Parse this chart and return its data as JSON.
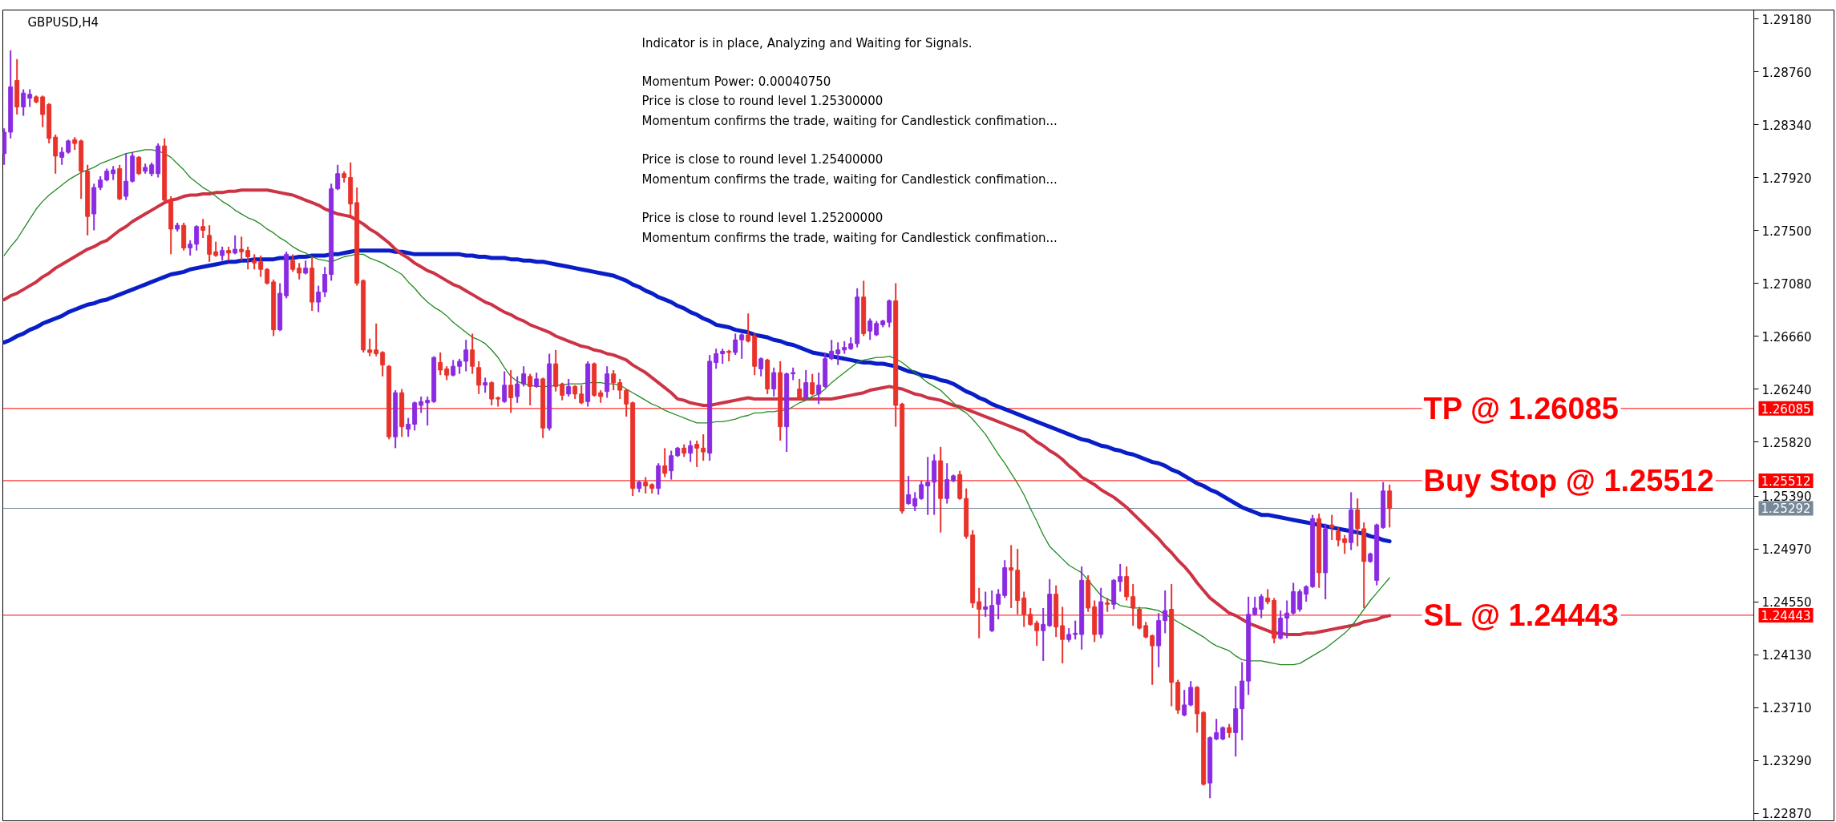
{
  "chart_data": {
    "type": "candlestick",
    "title": "GBPUSD,H4",
    "annotations": [
      "Indicator is in place, Analyzing and Waiting for Signals.",
      "Momentum Power: 0.00040750\nPrice is close to round level 1.25300000\nMomentum confirms the trade, waiting for Candlestick confimation...",
      "Price is close to round level 1.25400000\nMomentum confirms the trade, waiting for Candlestick confimation...",
      "Price is close to round level 1.25200000\nMomentum confirms the trade, waiting for Candlestick confimation..."
    ],
    "categories": [
      null,
      null,
      null,
      null,
      null,
      null,
      null,
      null,
      null,
      null,
      null,
      null,
      null,
      null,
      null,
      null,
      null,
      null,
      null,
      null,
      null,
      null,
      null,
      null,
      null,
      null,
      null,
      null,
      null,
      null,
      null,
      null,
      null,
      null,
      null,
      null,
      null,
      null,
      null,
      null,
      null,
      null,
      null,
      null,
      null,
      null,
      null,
      null,
      null,
      null,
      null,
      null,
      null,
      null,
      null,
      null,
      null,
      null,
      null,
      null,
      null,
      null,
      null,
      null,
      null,
      null,
      null,
      null,
      null,
      null,
      null,
      null,
      null,
      null,
      null,
      null,
      null,
      null,
      null,
      null,
      null,
      null,
      null,
      null,
      null,
      null,
      null,
      null,
      null,
      null,
      null,
      null,
      null,
      null,
      null,
      null,
      null,
      null,
      null,
      null,
      null,
      null,
      null,
      null,
      null,
      null,
      null,
      null,
      null,
      null,
      null,
      null,
      null,
      null,
      null,
      null,
      null,
      null,
      null,
      null,
      null,
      null,
      null,
      null,
      null,
      null,
      null,
      null,
      null,
      null,
      null,
      null,
      null,
      null,
      null,
      null,
      null,
      null,
      null,
      null,
      null,
      null,
      null,
      null,
      null,
      null,
      null,
      null,
      null,
      null,
      null,
      null,
      null,
      null,
      null,
      null,
      null,
      null,
      null,
      null,
      null,
      null,
      null,
      null,
      null,
      null,
      null,
      null,
      null,
      null,
      null,
      null,
      null,
      null,
      null,
      null,
      null,
      null,
      null,
      null,
      null,
      null,
      null,
      null,
      null,
      null,
      null,
      null,
      null,
      null,
      null,
      null,
      null,
      null,
      null,
      null,
      null,
      null,
      null,
      null,
      null,
      null,
      null,
      null,
      null,
      null,
      null,
      null,
      null,
      null,
      null,
      null,
      null,
      null,
      null,
      null,
      null
    ],
    "ohlc": [
      [
        1.2811,
        1.2831,
        1.2802,
        1.2828
      ],
      [
        1.2828,
        1.2893,
        1.2823,
        1.2864
      ],
      [
        1.2869,
        1.2886,
        1.2842,
        1.2848
      ],
      [
        1.2848,
        1.2862,
        1.2841,
        1.2859
      ],
      [
        1.2855,
        1.2862,
        1.2848,
        1.2858
      ],
      [
        1.2856,
        1.2857,
        1.2851,
        1.2852
      ],
      [
        1.2856,
        1.2857,
        1.2832,
        1.2842
      ],
      [
        1.285,
        1.2851,
        1.2819,
        1.2823
      ],
      [
        1.2824,
        1.2826,
        1.2795,
        1.2809
      ],
      [
        1.2808,
        1.2816,
        1.2802,
        1.2812
      ],
      [
        1.2812,
        1.2822,
        1.2811,
        1.2821
      ],
      [
        1.2822,
        1.2824,
        1.2814,
        1.2819
      ],
      [
        1.2821,
        1.2822,
        1.2775,
        1.2797
      ],
      [
        1.2797,
        1.2802,
        1.2746,
        1.2761
      ],
      [
        1.2763,
        1.2787,
        1.275,
        1.2784
      ],
      [
        1.2784,
        1.2793,
        1.2782,
        1.279
      ],
      [
        1.279,
        1.2799,
        1.2789,
        1.2797
      ],
      [
        1.2795,
        1.2801,
        1.279,
        1.2798
      ],
      [
        1.2799,
        1.2802,
        1.2774,
        1.2775
      ],
      [
        1.2777,
        1.2811,
        1.2774,
        1.2789
      ],
      [
        1.2789,
        1.2812,
        1.2788,
        1.2809
      ],
      [
        1.2808,
        1.2809,
        1.2794,
        1.2795
      ],
      [
        1.2797,
        1.2803,
        1.2795,
        1.28
      ],
      [
        1.2795,
        1.2804,
        1.2793,
        1.2802
      ],
      [
        1.2795,
        1.2819,
        1.2792,
        1.2817
      ],
      [
        1.2817,
        1.2823,
        1.2773,
        1.2774
      ],
      [
        1.2774,
        1.2777,
        1.2731,
        1.2751
      ],
      [
        1.2751,
        1.2756,
        1.2749,
        1.2754
      ],
      [
        1.2754,
        1.2756,
        1.2734,
        1.2736
      ],
      [
        1.2736,
        1.2742,
        1.273,
        1.2739
      ],
      [
        1.2739,
        1.2754,
        1.2734,
        1.2753
      ],
      [
        1.2753,
        1.2759,
        1.2744,
        1.275
      ],
      [
        1.2746,
        1.2754,
        1.2725,
        1.2731
      ],
      [
        1.2733,
        1.2741,
        1.2729,
        1.273
      ],
      [
        1.273,
        1.2737,
        1.2726,
        1.2734
      ],
      [
        1.2734,
        1.2737,
        1.2726,
        1.2732
      ],
      [
        1.2732,
        1.2746,
        1.2731,
        1.2735
      ],
      [
        1.2735,
        1.2745,
        1.2726,
        1.2733
      ],
      [
        1.2734,
        1.2737,
        1.2719,
        1.2729
      ],
      [
        1.2726,
        1.2731,
        1.2719,
        1.2724
      ],
      [
        1.2725,
        1.273,
        1.2713,
        1.2719
      ],
      [
        1.2719,
        1.272,
        1.2707,
        1.2708
      ],
      [
        1.2709,
        1.2711,
        1.2666,
        1.2671
      ],
      [
        1.2671,
        1.2708,
        1.267,
        1.27
      ],
      [
        1.2698,
        1.2733,
        1.2696,
        1.2731
      ],
      [
        1.2726,
        1.2731,
        1.2717,
        1.2719
      ],
      [
        1.272,
        1.2724,
        1.2711,
        1.2716
      ],
      [
        1.2716,
        1.2726,
        1.2715,
        1.272
      ],
      [
        1.272,
        1.2729,
        1.2686,
        1.2693
      ],
      [
        1.2693,
        1.2706,
        1.2685,
        1.2701
      ],
      [
        1.2701,
        1.2721,
        1.2697,
        1.2715
      ],
      [
        1.2715,
        1.2787,
        1.271,
        1.2783
      ],
      [
        1.2783,
        1.2802,
        1.2782,
        1.2795
      ],
      [
        1.2795,
        1.2797,
        1.2788,
        1.2792
      ],
      [
        1.2792,
        1.2804,
        1.2761,
        1.2771
      ],
      [
        1.2772,
        1.2784,
        1.2706,
        1.2708
      ],
      [
        1.271,
        1.2711,
        1.2653,
        1.2655
      ],
      [
        1.2655,
        1.2664,
        1.265,
        1.2653
      ],
      [
        1.2655,
        1.2676,
        1.265,
        1.2652
      ],
      [
        1.2653,
        1.2654,
        1.2634,
        1.2643
      ],
      [
        1.2642,
        1.2643,
        1.2584,
        1.2586
      ],
      [
        1.2586,
        1.2623,
        1.2577,
        1.2621
      ],
      [
        1.2621,
        1.2624,
        1.2586,
        1.2594
      ],
      [
        1.2592,
        1.2601,
        1.2586,
        1.2596
      ],
      [
        1.2596,
        1.2614,
        1.2591,
        1.2613
      ],
      [
        1.2611,
        1.2618,
        1.2605,
        1.2614
      ],
      [
        1.2613,
        1.2618,
        1.2595,
        1.2615
      ],
      [
        1.2614,
        1.265,
        1.2613,
        1.2649
      ],
      [
        1.2645,
        1.2653,
        1.2635,
        1.2639
      ],
      [
        1.264,
        1.2642,
        1.2631,
        1.2635
      ],
      [
        1.2635,
        1.2647,
        1.2634,
        1.2642
      ],
      [
        1.2642,
        1.2648,
        1.2636,
        1.2646
      ],
      [
        1.2646,
        1.2663,
        1.2638,
        1.2655
      ],
      [
        1.2655,
        1.2668,
        1.2636,
        1.2642
      ],
      [
        1.2641,
        1.2646,
        1.262,
        1.2627
      ],
      [
        1.2627,
        1.2633,
        1.2621,
        1.2629
      ],
      [
        1.2629,
        1.263,
        1.2611,
        1.2616
      ],
      [
        1.2617,
        1.2618,
        1.261,
        1.2616
      ],
      [
        1.2614,
        1.2638,
        1.2613,
        1.2627
      ],
      [
        1.2627,
        1.2639,
        1.2605,
        1.2617
      ],
      [
        1.2618,
        1.2634,
        1.2613,
        1.2628
      ],
      [
        1.2628,
        1.2642,
        1.2626,
        1.2636
      ],
      [
        1.2634,
        1.2636,
        1.2611,
        1.2626
      ],
      [
        1.2626,
        1.2637,
        1.2625,
        1.2632
      ],
      [
        1.2632,
        1.2633,
        1.2585,
        1.2593
      ],
      [
        1.2593,
        1.2652,
        1.2591,
        1.2644
      ],
      [
        1.2644,
        1.2655,
        1.2622,
        1.2626
      ],
      [
        1.2628,
        1.2629,
        1.2615,
        1.2619
      ],
      [
        1.262,
        1.2632,
        1.2618,
        1.2626
      ],
      [
        1.2626,
        1.2627,
        1.2616,
        1.262
      ],
      [
        1.262,
        1.2627,
        1.2612,
        1.2613
      ],
      [
        1.2614,
        1.2646,
        1.261,
        1.2644
      ],
      [
        1.2644,
        1.2645,
        1.2618,
        1.2619
      ],
      [
        1.2621,
        1.2623,
        1.2613,
        1.2618
      ],
      [
        1.2622,
        1.2642,
        1.2617,
        1.2636
      ],
      [
        1.2636,
        1.2639,
        1.2623,
        1.2629
      ],
      [
        1.2629,
        1.2632,
        1.2616,
        1.2623
      ],
      [
        1.2623,
        1.2624,
        1.2602,
        1.2612
      ],
      [
        1.2613,
        1.2614,
        1.2539,
        1.2545
      ],
      [
        1.2545,
        1.2551,
        1.2542,
        1.255
      ],
      [
        1.255,
        1.2554,
        1.2541,
        1.2547
      ],
      [
        1.2548,
        1.2549,
        1.2541,
        1.2545
      ],
      [
        1.2545,
        1.2565,
        1.254,
        1.2563
      ],
      [
        1.2563,
        1.2577,
        1.2554,
        1.2557
      ],
      [
        1.2559,
        1.2575,
        1.2552,
        1.2571
      ],
      [
        1.2571,
        1.2578,
        1.257,
        1.2577
      ],
      [
        1.2577,
        1.258,
        1.257,
        1.2573
      ],
      [
        1.2573,
        1.2583,
        1.2566,
        1.2579
      ],
      [
        1.258,
        1.2583,
        1.2562,
        1.2577
      ],
      [
        1.2577,
        1.2588,
        1.2567,
        1.2574
      ],
      [
        1.2573,
        1.2651,
        1.2567,
        1.2646
      ],
      [
        1.2645,
        1.2656,
        1.264,
        1.2652
      ],
      [
        1.2652,
        1.2656,
        1.2644,
        1.2654
      ],
      [
        1.2654,
        1.2655,
        1.2646,
        1.2653
      ],
      [
        1.2653,
        1.2668,
        1.2651,
        1.2663
      ],
      [
        1.2663,
        1.2668,
        1.2648,
        1.2667
      ],
      [
        1.2667,
        1.2684,
        1.2661,
        1.2662
      ],
      [
        1.2666,
        1.2668,
        1.2635,
        1.2642
      ],
      [
        1.264,
        1.2649,
        1.2634,
        1.2648
      ],
      [
        1.2647,
        1.2648,
        1.262,
        1.2624
      ],
      [
        1.2624,
        1.2641,
        1.2618,
        1.2637
      ],
      [
        1.2637,
        1.2646,
        1.2583,
        1.2594
      ],
      [
        1.2594,
        1.2637,
        1.2574,
        1.2636
      ],
      [
        1.2636,
        1.2641,
        1.2631,
        1.2637
      ],
      [
        1.2624,
        1.2632,
        1.2615,
        1.2616
      ],
      [
        1.2617,
        1.2639,
        1.2616,
        1.2629
      ],
      [
        1.2629,
        1.2636,
        1.2619,
        1.262
      ],
      [
        1.262,
        1.2637,
        1.2612,
        1.2627
      ],
      [
        1.2626,
        1.2653,
        1.2625,
        1.2648
      ],
      [
        1.2648,
        1.2663,
        1.2647,
        1.2654
      ],
      [
        1.2652,
        1.2661,
        1.2643,
        1.2655
      ],
      [
        1.2655,
        1.2662,
        1.2652,
        1.2657
      ],
      [
        1.2656,
        1.2665,
        1.2655,
        1.266
      ],
      [
        1.266,
        1.2704,
        1.2657,
        1.2697
      ],
      [
        1.2697,
        1.271,
        1.2666,
        1.2668
      ],
      [
        1.267,
        1.268,
        1.2663,
        1.2678
      ],
      [
        1.2667,
        1.2678,
        1.2666,
        1.2676
      ],
      [
        1.2675,
        1.2679,
        1.2673,
        1.2678
      ],
      [
        1.2677,
        1.2695,
        1.2673,
        1.2694
      ],
      [
        1.2694,
        1.2708,
        1.2594,
        1.2611
      ],
      [
        1.2612,
        1.2613,
        1.2525,
        1.2527
      ],
      [
        1.2533,
        1.2555,
        1.2532,
        1.254
      ],
      [
        1.2531,
        1.2542,
        1.2527,
        1.2537
      ],
      [
        1.2537,
        1.2551,
        1.2536,
        1.2548
      ],
      [
        1.2547,
        1.257,
        1.2524,
        1.255
      ],
      [
        1.255,
        1.2572,
        1.2524,
        1.2567
      ],
      [
        1.2567,
        1.2578,
        1.251,
        1.2537
      ],
      [
        1.2537,
        1.2565,
        1.2533,
        1.2552
      ],
      [
        1.2551,
        1.2556,
        1.255,
        1.2555
      ],
      [
        1.2556,
        1.2559,
        1.2536,
        1.2537
      ],
      [
        1.2537,
        1.2545,
        1.2505,
        1.2507
      ],
      [
        1.2508,
        1.2512,
        1.245,
        1.2454
      ],
      [
        1.2455,
        1.2466,
        1.2426,
        1.2449
      ],
      [
        1.2449,
        1.2463,
        1.2443,
        1.2451
      ],
      [
        1.2432,
        1.2464,
        1.2431,
        1.2452
      ],
      [
        1.2453,
        1.2465,
        1.2441,
        1.2461
      ],
      [
        1.246,
        1.2488,
        1.2458,
        1.2482
      ],
      [
        1.2482,
        1.25,
        1.245,
        1.248
      ],
      [
        1.248,
        1.2497,
        1.2445,
        1.2456
      ],
      [
        1.2458,
        1.2463,
        1.2435,
        1.2445
      ],
      [
        1.2445,
        1.245,
        1.2436,
        1.2437
      ],
      [
        1.2438,
        1.244,
        1.242,
        1.2432
      ],
      [
        1.2432,
        1.245,
        1.2408,
        1.2437
      ],
      [
        1.2436,
        1.2473,
        1.2435,
        1.2461
      ],
      [
        1.2461,
        1.2468,
        1.2427,
        1.2435
      ],
      [
        1.2436,
        1.2451,
        1.2406,
        1.2425
      ],
      [
        1.2425,
        1.2434,
        1.2423,
        1.2429
      ],
      [
        1.2429,
        1.244,
        1.2425,
        1.243
      ],
      [
        1.2429,
        1.2483,
        1.2417,
        1.2472
      ],
      [
        1.2472,
        1.2476,
        1.2447,
        1.245
      ],
      [
        1.2451,
        1.2456,
        1.2423,
        1.2429
      ],
      [
        1.2429,
        1.2466,
        1.2426,
        1.2455
      ],
      [
        1.2454,
        1.2458,
        1.2447,
        1.2453
      ],
      [
        1.2453,
        1.2473,
        1.2449,
        1.2472
      ],
      [
        1.2471,
        1.2485,
        1.2463,
        1.2475
      ],
      [
        1.2475,
        1.2483,
        1.2456,
        1.2459
      ],
      [
        1.2459,
        1.2469,
        1.2436,
        1.245
      ],
      [
        1.2449,
        1.2451,
        1.2433,
        1.2434
      ],
      [
        1.2436,
        1.2439,
        1.2426,
        1.2427
      ],
      [
        1.2428,
        1.2429,
        1.2389,
        1.242
      ],
      [
        1.242,
        1.2446,
        1.2403,
        1.244
      ],
      [
        1.244,
        1.2464,
        1.243,
        1.2448
      ],
      [
        1.2449,
        1.2469,
        1.2372,
        1.2391
      ],
      [
        1.2391,
        1.2393,
        1.2366,
        1.2369
      ],
      [
        1.2365,
        1.2385,
        1.2364,
        1.2373
      ],
      [
        1.2373,
        1.2392,
        1.2372,
        1.2387
      ],
      [
        1.2387,
        1.2388,
        1.2351,
        1.2366
      ],
      [
        1.2367,
        1.2368,
        1.2309,
        1.231
      ],
      [
        1.2311,
        1.2348,
        1.2299,
        1.2347
      ],
      [
        1.2346,
        1.2362,
        1.2345,
        1.2351
      ],
      [
        1.2346,
        1.2356,
        1.2345,
        1.2355
      ],
      [
        1.2355,
        1.2358,
        1.2347,
        1.2351
      ],
      [
        1.2351,
        1.2388,
        1.2332,
        1.237
      ],
      [
        1.237,
        1.2407,
        1.2345,
        1.2392
      ],
      [
        1.2392,
        1.2459,
        1.2381,
        1.2445
      ],
      [
        1.2445,
        1.2459,
        1.2444,
        1.245
      ],
      [
        1.2449,
        1.2461,
        1.2442,
        1.2459
      ],
      [
        1.2458,
        1.2465,
        1.2453,
        1.2455
      ],
      [
        1.2456,
        1.2458,
        1.2422,
        1.2426
      ],
      [
        1.2426,
        1.2448,
        1.2425,
        1.2442
      ],
      [
        1.2442,
        1.2456,
        1.2426,
        1.2446
      ],
      [
        1.2446,
        1.247,
        1.2445,
        1.2463
      ],
      [
        1.2449,
        1.2465,
        1.2447,
        1.2463
      ],
      [
        1.2461,
        1.2468,
        1.2455,
        1.2467
      ],
      [
        1.2467,
        1.2524,
        1.2466,
        1.2521
      ],
      [
        1.2521,
        1.2525,
        1.2466,
        1.2478
      ],
      [
        1.2478,
        1.2517,
        1.2457,
        1.2513
      ],
      [
        1.2516,
        1.2524,
        1.2504,
        1.2514
      ],
      [
        1.2511,
        1.2514,
        1.2499,
        1.2504
      ],
      [
        1.2505,
        1.2508,
        1.2493,
        1.2502
      ],
      [
        1.2502,
        1.2542,
        1.2496,
        1.2528
      ],
      [
        1.2528,
        1.2537,
        1.2499,
        1.2513
      ],
      [
        1.2513,
        1.2518,
        1.245,
        1.2487
      ],
      [
        1.2487,
        1.2494,
        1.2486,
        1.2493
      ],
      [
        1.2472,
        1.2517,
        1.2468,
        1.2516
      ],
      [
        1.2514,
        1.255,
        1.2513,
        1.2543
      ],
      [
        1.2543,
        1.2548,
        1.2514,
        1.2529
      ]
    ],
    "colors": [
      "#8a2be2",
      "#8a2be2",
      "#e8322a",
      "#8a2be2",
      "#8a2be2",
      "#e8322a",
      "#e8322a",
      "#e8322a",
      "#e8322a",
      "#8a2be2",
      "#8a2be2",
      "#e8322a",
      "#e8322a",
      "#e8322a",
      "#8a2be2",
      "#8a2be2",
      "#8a2be2",
      "#8a2be2",
      "#e8322a",
      "#8a2be2",
      "#8a2be2",
      "#e8322a",
      "#8a2be2",
      "#8a2be2",
      "#8a2be2",
      "#e8322a",
      "#e8322a",
      "#8a2be2",
      "#e8322a",
      "#8a2be2",
      "#8a2be2",
      "#e8322a",
      "#e8322a",
      "#e8322a",
      "#8a2be2",
      "#e8322a",
      "#8a2be2",
      "#e8322a",
      "#e8322a",
      "#e8322a",
      "#e8322a",
      "#e8322a",
      "#e8322a",
      "#8a2be2",
      "#8a2be2",
      "#e8322a",
      "#e8322a",
      "#8a2be2",
      "#e8322a",
      "#8a2be2",
      "#8a2be2",
      "#8a2be2",
      "#8a2be2",
      "#e8322a",
      "#e8322a",
      "#e8322a",
      "#e8322a",
      "#e8322a",
      "#e8322a",
      "#e8322a",
      "#e8322a",
      "#8a2be2",
      "#e8322a",
      "#8a2be2",
      "#8a2be2",
      "#8a2be2",
      "#8a2be2",
      "#8a2be2",
      "#e8322a",
      "#e8322a",
      "#8a2be2",
      "#8a2be2",
      "#8a2be2",
      "#e8322a",
      "#e8322a",
      "#8a2be2",
      "#e8322a",
      "#e8322a",
      "#8a2be2",
      "#e8322a",
      "#8a2be2",
      "#8a2be2",
      "#e8322a",
      "#8a2be2",
      "#e8322a",
      "#8a2be2",
      "#e8322a",
      "#e8322a",
      "#8a2be2",
      "#e8322a",
      "#e8322a",
      "#8a2be2",
      "#e8322a",
      "#e8322a",
      "#8a2be2",
      "#e8322a",
      "#e8322a",
      "#e8322a",
      "#e8322a",
      "#8a2be2",
      "#e8322a",
      "#e8322a",
      "#8a2be2",
      "#e8322a",
      "#8a2be2",
      "#8a2be2",
      "#e8322a",
      "#8a2be2",
      "#e8322a",
      "#e8322a",
      "#8a2be2",
      "#8a2be2",
      "#8a2be2",
      "#e8322a",
      "#8a2be2",
      "#8a2be2",
      "#e8322a",
      "#e8322a",
      "#8a2be2",
      "#e8322a",
      "#8a2be2",
      "#e8322a",
      "#8a2be2",
      "#8a2be2",
      "#e8322a",
      "#8a2be2",
      "#e8322a",
      "#8a2be2",
      "#8a2be2",
      "#8a2be2",
      "#8a2be2",
      "#8a2be2",
      "#8a2be2",
      "#8a2be2",
      "#e8322a",
      "#8a2be2",
      "#8a2be2",
      "#8a2be2",
      "#8a2be2",
      "#e8322a",
      "#e8322a",
      "#8a2be2",
      "#8a2be2",
      "#8a2be2",
      "#8a2be2",
      "#8a2be2",
      "#e8322a",
      "#8a2be2",
      "#8a2be2",
      "#e8322a",
      "#e8322a",
      "#e8322a",
      "#e8322a",
      "#8a2be2",
      "#8a2be2",
      "#8a2be2",
      "#8a2be2",
      "#e8322a",
      "#e8322a",
      "#e8322a",
      "#e8322a",
      "#e8322a",
      "#8a2be2",
      "#8a2be2",
      "#e8322a",
      "#e8322a",
      "#8a2be2",
      "#8a2be2",
      "#8a2be2",
      "#e8322a",
      "#e8322a",
      "#8a2be2",
      "#e8322a",
      "#8a2be2",
      "#8a2be2",
      "#e8322a",
      "#e8322a",
      "#e8322a",
      "#e8322a",
      "#e8322a",
      "#8a2be2",
      "#8a2be2",
      "#e8322a",
      "#e8322a",
      "#8a2be2",
      "#8a2be2",
      "#e8322a",
      "#e8322a",
      "#8a2be2",
      "#8a2be2",
      "#8a2be2",
      "#e8322a",
      "#8a2be2",
      "#8a2be2",
      "#8a2be2",
      "#8a2be2",
      "#8a2be2",
      "#e8322a",
      "#e8322a",
      "#8a2be2",
      "#8a2be2",
      "#8a2be2",
      "#8a2be2",
      "#8a2be2",
      "#8a2be2",
      "#e8322a",
      "#8a2be2",
      "#e8322a",
      "#e8322a",
      "#e8322a",
      "#8a2be2",
      "#e8322a",
      "#e8322a",
      "#8a2be2",
      "#8a2be2",
      "#8a2be2",
      "#e8322a"
    ],
    "series": [
      {
        "type": "line",
        "color": "#0a1ec8",
        "values": [
          1.2661,
          1.2663,
          1.2666,
          1.2668,
          1.2671,
          1.2673,
          1.2676,
          1.2678,
          1.268,
          1.2682,
          1.2685,
          1.2687,
          1.2689,
          1.2691,
          1.2692,
          1.2694,
          1.2695,
          1.2697,
          1.2699,
          1.2701,
          1.2703,
          1.2705,
          1.2707,
          1.2709,
          1.2711,
          1.2713,
          1.2715,
          1.2716,
          1.2717,
          1.2719,
          1.272,
          1.2721,
          1.2722,
          1.2723,
          1.2724,
          1.2725,
          1.2725,
          1.2726,
          1.2726,
          1.2727,
          1.2727,
          1.2727,
          1.2727,
          1.2728,
          1.2728,
          1.2728,
          1.2729,
          1.2729,
          1.273,
          1.273,
          1.273,
          1.2731,
          1.2731,
          1.2732,
          1.2733,
          1.2734,
          1.2734,
          1.2734,
          1.2734,
          1.2734,
          1.2734,
          1.2733,
          1.2733,
          1.2732,
          1.2731,
          1.2731,
          1.2731,
          1.2731,
          1.2731,
          1.2731,
          1.2731,
          1.2731,
          1.273,
          1.273,
          1.2729,
          1.2729,
          1.2728,
          1.2728,
          1.2728,
          1.2727,
          1.2727,
          1.2726,
          1.2726,
          1.2725,
          1.2725,
          1.2724,
          1.2723,
          1.2722,
          1.2721,
          1.272,
          1.2719,
          1.2718,
          1.2717,
          1.2716,
          1.2715,
          1.2714,
          1.2712,
          1.271,
          1.2707,
          1.2705,
          1.2702,
          1.27,
          1.2697,
          1.2695,
          1.2693,
          1.269,
          1.2688,
          1.2685,
          1.2683,
          1.268,
          1.2678,
          1.2675,
          1.2674,
          1.2673,
          1.2671,
          1.267,
          1.2669,
          1.2667,
          1.2666,
          1.2665,
          1.2663,
          1.2662,
          1.266,
          1.2659,
          1.2657,
          1.2655,
          1.2653,
          1.2652,
          1.2651,
          1.265,
          1.2649,
          1.2648,
          1.2647,
          1.2646,
          1.2645,
          1.2645,
          1.2644,
          1.2644,
          1.2643,
          1.2642,
          1.264,
          1.2638,
          1.2637,
          1.2635,
          1.2634,
          1.2633,
          1.2631,
          1.263,
          1.2628,
          1.2625,
          1.2622,
          1.262,
          1.2617,
          1.2615,
          1.2612,
          1.261,
          1.2608,
          1.2606,
          1.2604,
          1.2602,
          1.26,
          1.2598,
          1.2596,
          1.2594,
          1.2592,
          1.259,
          1.2588,
          1.2586,
          1.2584,
          1.2583,
          1.2581,
          1.2579,
          1.2578,
          1.2576,
          1.2575,
          1.2573,
          1.2572,
          1.257,
          1.2568,
          1.2566,
          1.2565,
          1.2563,
          1.256,
          1.2558,
          1.2555,
          1.2552,
          1.2549,
          1.2547,
          1.2544,
          1.2542,
          1.2539,
          1.2536,
          1.2533,
          1.253,
          1.2528,
          1.2526,
          1.2524,
          1.2524,
          1.2523,
          1.2522,
          1.2521,
          1.252,
          1.2519,
          1.2518,
          1.2517,
          1.2516,
          1.2515,
          1.2514,
          1.2513,
          1.2512,
          1.2511,
          1.251,
          1.2509,
          1.2507,
          1.2506,
          1.2504,
          1.2503
        ]
      },
      {
        "type": "line",
        "color": "#cc3344",
        "values": [
          1.2695,
          1.2698,
          1.27,
          1.2703,
          1.2706,
          1.2709,
          1.2713,
          1.2716,
          1.272,
          1.2723,
          1.2726,
          1.2729,
          1.2732,
          1.2735,
          1.2737,
          1.274,
          1.2742,
          1.2746,
          1.275,
          1.2753,
          1.2757,
          1.276,
          1.2763,
          1.2766,
          1.2769,
          1.2772,
          1.2774,
          1.2775,
          1.2777,
          1.2778,
          1.2778,
          1.2779,
          1.2779,
          1.278,
          1.278,
          1.2781,
          1.2781,
          1.2782,
          1.2782,
          1.2782,
          1.2782,
          1.2782,
          1.2781,
          1.278,
          1.2779,
          1.2778,
          1.2776,
          1.2774,
          1.2772,
          1.277,
          1.2767,
          1.2765,
          1.2763,
          1.2762,
          1.2761,
          1.2758,
          1.2755,
          1.2751,
          1.2748,
          1.2744,
          1.274,
          1.2735,
          1.2731,
          1.2728,
          1.2724,
          1.2721,
          1.2718,
          1.2716,
          1.2713,
          1.271,
          1.2707,
          1.2705,
          1.2702,
          1.2699,
          1.2696,
          1.2693,
          1.2691,
          1.2688,
          1.2685,
          1.2683,
          1.268,
          1.2678,
          1.2675,
          1.2673,
          1.2671,
          1.2669,
          1.2666,
          1.2664,
          1.2662,
          1.266,
          1.2658,
          1.2657,
          1.2655,
          1.2654,
          1.2652,
          1.2651,
          1.2649,
          1.2647,
          1.2643,
          1.264,
          1.2637,
          1.2633,
          1.2629,
          1.2625,
          1.2621,
          1.2616,
          1.2615,
          1.2613,
          1.2612,
          1.2611,
          1.2611,
          1.2612,
          1.2613,
          1.2614,
          1.2615,
          1.2616,
          1.2617,
          1.2616,
          1.2616,
          1.2616,
          1.2616,
          1.2616,
          1.2616,
          1.2616,
          1.2616,
          1.2616,
          1.2616,
          1.2616,
          1.2616,
          1.2616,
          1.2617,
          1.2618,
          1.2619,
          1.262,
          1.2621,
          1.2623,
          1.2624,
          1.2625,
          1.2626,
          1.2625,
          1.2624,
          1.2622,
          1.262,
          1.2619,
          1.2617,
          1.2616,
          1.2615,
          1.2613,
          1.2611,
          1.261,
          1.2608,
          1.2606,
          1.2604,
          1.2602,
          1.26,
          1.2598,
          1.2596,
          1.2594,
          1.2592,
          1.259,
          1.2586,
          1.2582,
          1.2579,
          1.2575,
          1.2572,
          1.2568,
          1.2563,
          1.2559,
          1.2554,
          1.2551,
          1.2548,
          1.2544,
          1.2541,
          1.2538,
          1.2534,
          1.253,
          1.2525,
          1.252,
          1.2515,
          1.251,
          1.2505,
          1.2499,
          1.2494,
          1.2488,
          1.2483,
          1.2477,
          1.247,
          1.2464,
          1.2458,
          1.2454,
          1.245,
          1.2446,
          1.2444,
          1.2441,
          1.2438,
          1.2436,
          1.2434,
          1.2432,
          1.243,
          1.243,
          1.2429,
          1.2429,
          1.2429,
          1.243,
          1.243,
          1.2431,
          1.2432,
          1.2433,
          1.2434,
          1.2435,
          1.2436,
          1.2437,
          1.2439,
          1.244,
          1.2441,
          1.2443,
          1.2444
        ]
      },
      {
        "type": "line",
        "color": "#228b22",
        "values": [
          1.273,
          1.2737,
          1.2743,
          1.2751,
          1.2759,
          1.2767,
          1.2773,
          1.2778,
          1.2782,
          1.2786,
          1.279,
          1.2793,
          1.2796,
          1.2798,
          1.28,
          1.2803,
          1.2805,
          1.2807,
          1.2809,
          1.2811,
          1.2812,
          1.2813,
          1.2814,
          1.2814,
          1.2813,
          1.2811,
          1.2808,
          1.2803,
          1.2798,
          1.2792,
          1.2788,
          1.2784,
          1.2781,
          1.2777,
          1.2773,
          1.277,
          1.2766,
          1.2763,
          1.276,
          1.2758,
          1.2755,
          1.2751,
          1.2748,
          1.2744,
          1.2741,
          1.2737,
          1.2734,
          1.2732,
          1.2729,
          1.2727,
          1.2726,
          1.2725,
          1.2727,
          1.2729,
          1.273,
          1.2731,
          1.2731,
          1.2728,
          1.2726,
          1.2724,
          1.2721,
          1.2718,
          1.2715,
          1.2709,
          1.2704,
          1.2698,
          1.2693,
          1.2689,
          1.2686,
          1.2682,
          1.2677,
          1.2673,
          1.2669,
          1.2665,
          1.2663,
          1.266,
          1.2655,
          1.2649,
          1.2641,
          1.2634,
          1.263,
          1.2628,
          1.2627,
          1.2626,
          1.2626,
          1.2626,
          1.2627,
          1.2627,
          1.2628,
          1.2628,
          1.2628,
          1.2629,
          1.2629,
          1.2629,
          1.2628,
          1.2628,
          1.2627,
          1.2624,
          1.2621,
          1.2618,
          1.2615,
          1.2612,
          1.261,
          1.2607,
          1.2605,
          1.2603,
          1.2601,
          1.2599,
          1.2597,
          1.2597,
          1.2597,
          1.2598,
          1.2598,
          1.2599,
          1.26,
          1.2602,
          1.2603,
          1.2605,
          1.2605,
          1.2606,
          1.2606,
          1.2607,
          1.2607,
          1.261,
          1.2613,
          1.2615,
          1.2618,
          1.262,
          1.2624,
          1.2629,
          1.2633,
          1.2637,
          1.2641,
          1.2645,
          1.2647,
          1.2648,
          1.2649,
          1.2649,
          1.265,
          1.2648,
          1.2645,
          1.2641,
          1.2637,
          1.2633,
          1.2629,
          1.2626,
          1.2623,
          1.2618,
          1.2613,
          1.2608,
          1.2605,
          1.26,
          1.2594,
          1.2588,
          1.258,
          1.2572,
          1.2565,
          1.2557,
          1.2549,
          1.254,
          1.2529,
          1.2519,
          1.2508,
          1.2499,
          1.2494,
          1.2489,
          1.2484,
          1.2481,
          1.2478,
          1.2472,
          1.2466,
          1.246,
          1.2457,
          1.2455,
          1.2452,
          1.2451,
          1.245,
          1.245,
          1.245,
          1.2449,
          1.2448,
          1.2445,
          1.2442,
          1.2439,
          1.2436,
          1.2433,
          1.243,
          1.2427,
          1.2423,
          1.242,
          1.2418,
          1.2416,
          1.2412,
          1.2409,
          1.2408,
          1.2408,
          1.2408,
          1.2407,
          1.2406,
          1.2405,
          1.2405,
          1.2405,
          1.2406,
          1.2409,
          1.2412,
          1.2415,
          1.2418,
          1.2422,
          1.2426,
          1.243,
          1.2435,
          1.2442,
          1.2449,
          1.2456,
          1.2462,
          1.2468,
          1.2474
        ]
      }
    ],
    "ylim": [
      1.2281,
      1.2925
    ],
    "yticks": [
      {
        "value": 1.2918,
        "label": "1.29180"
      },
      {
        "value": 1.2876,
        "label": "1.28760"
      },
      {
        "value": 1.2834,
        "label": "1.28340"
      },
      {
        "value": 1.2792,
        "label": "1.27920"
      },
      {
        "value": 1.275,
        "label": "1.27500"
      },
      {
        "value": 1.2708,
        "label": "1.27080"
      },
      {
        "value": 1.2666,
        "label": "1.26660"
      },
      {
        "value": 1.2624,
        "label": "1.26240"
      },
      {
        "value": 1.26085,
        "label": "1.26085"
      },
      {
        "value": 1.2582,
        "label": "1.25820"
      },
      {
        "value": 1.25512,
        "label": "1.25512"
      },
      {
        "value": 1.2539,
        "label": "1.25390"
      },
      {
        "value": 1.25292,
        "label": "1.25292"
      },
      {
        "value": 1.2497,
        "label": "1.24970"
      },
      {
        "value": 1.2455,
        "label": "1.24550"
      },
      {
        "value": 1.24443,
        "label": "1.24443"
      },
      {
        "value": 1.2413,
        "label": "1.24130"
      },
      {
        "value": 1.2371,
        "label": "1.23710"
      },
      {
        "value": 1.2329,
        "label": "1.23290"
      },
      {
        "value": 1.2287,
        "label": "1.22870"
      }
    ],
    "ref_lines": [
      {
        "axis": "y",
        "value": 1.26085,
        "label": "TP @ 1.26085",
        "color": "#ff0000"
      },
      {
        "axis": "y",
        "value": 1.25512,
        "label": "Buy Stop @ 1.25512",
        "color": "#ff0000"
      },
      {
        "axis": "y",
        "value": 1.25292,
        "color": "#778899"
      },
      {
        "axis": "y",
        "value": 1.24443,
        "label": "SL @ 1.24443",
        "color": "#ff0000"
      }
    ],
    "tick_labels": "y",
    "grid": false
  }
}
